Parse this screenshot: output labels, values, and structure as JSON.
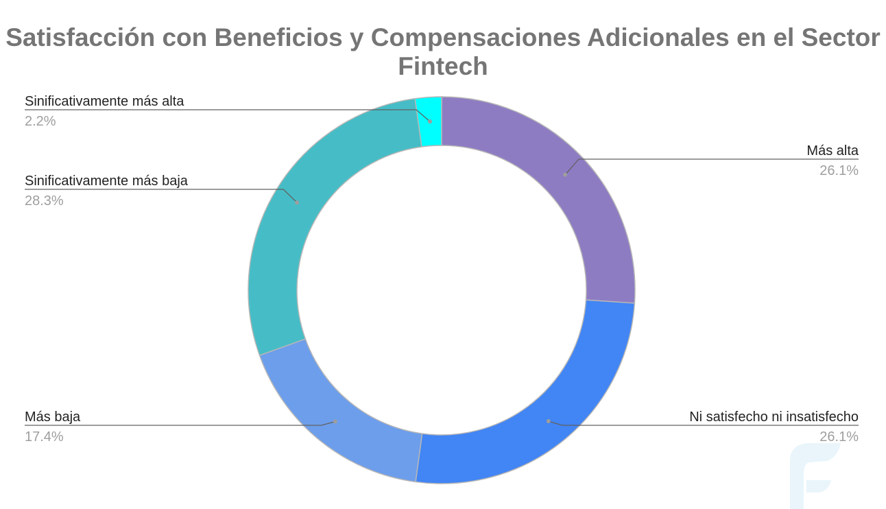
{
  "chart_data": {
    "type": "pie",
    "donut": true,
    "title": "Satisfacción con Beneficios y Compensaciones Adicionales en el Sector Fintech",
    "start_angle_deg": 0,
    "direction": "clockwise",
    "legend": "none",
    "label_style": "leader-lines",
    "slices": [
      {
        "label": "Más alta",
        "value": 26.1,
        "display": "26.1%",
        "color": "#8e7cc3",
        "side": "right"
      },
      {
        "label": "Ni satisfecho ni insatisfecho",
        "value": 26.1,
        "display": "26.1%",
        "color": "#4285f4",
        "side": "right"
      },
      {
        "label": "Más baja",
        "value": 17.4,
        "display": "17.4%",
        "color": "#6d9eeb",
        "side": "left"
      },
      {
        "label": "Sinificativamente más baja",
        "value": 28.3,
        "display": "28.3%",
        "color": "#46bdc6",
        "side": "left"
      },
      {
        "label": "Sinificativamente más alta",
        "value": 2.2,
        "display": "2.2%",
        "color": "#00ffff",
        "side": "left"
      }
    ]
  },
  "watermark": {
    "icon": "fintech-logo-icon",
    "color": "#e8f4fb"
  }
}
